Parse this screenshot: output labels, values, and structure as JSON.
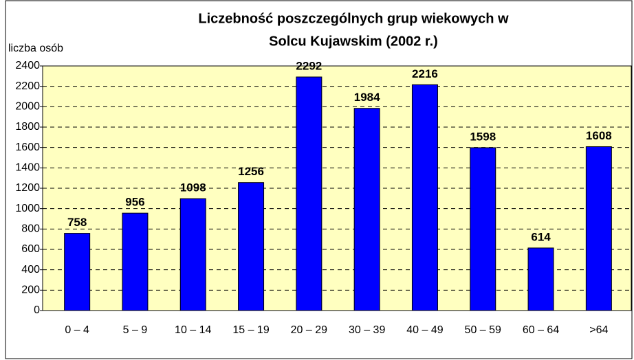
{
  "chart_data": {
    "type": "bar",
    "title": [
      "Liczebność poszczególnych grup wiekowych w",
      "Solcu Kujawskim (2002 r.)"
    ],
    "y_label": "liczba osób",
    "categories": [
      "0 – 4",
      "5 – 9",
      "10 – 14",
      "15 – 19",
      "20 – 29",
      "30 – 39",
      "40 – 49",
      "50 – 59",
      "60 – 64",
      ">64"
    ],
    "values": [
      758,
      956,
      1098,
      1256,
      2292,
      1984,
      2216,
      1598,
      614,
      1608
    ],
    "color": "#0000ff",
    "ylim": [
      0,
      2400
    ],
    "yticks": [
      0,
      200,
      400,
      600,
      800,
      1000,
      1200,
      1400,
      1600,
      1800,
      2000,
      2200,
      2400
    ],
    "grid": true
  }
}
